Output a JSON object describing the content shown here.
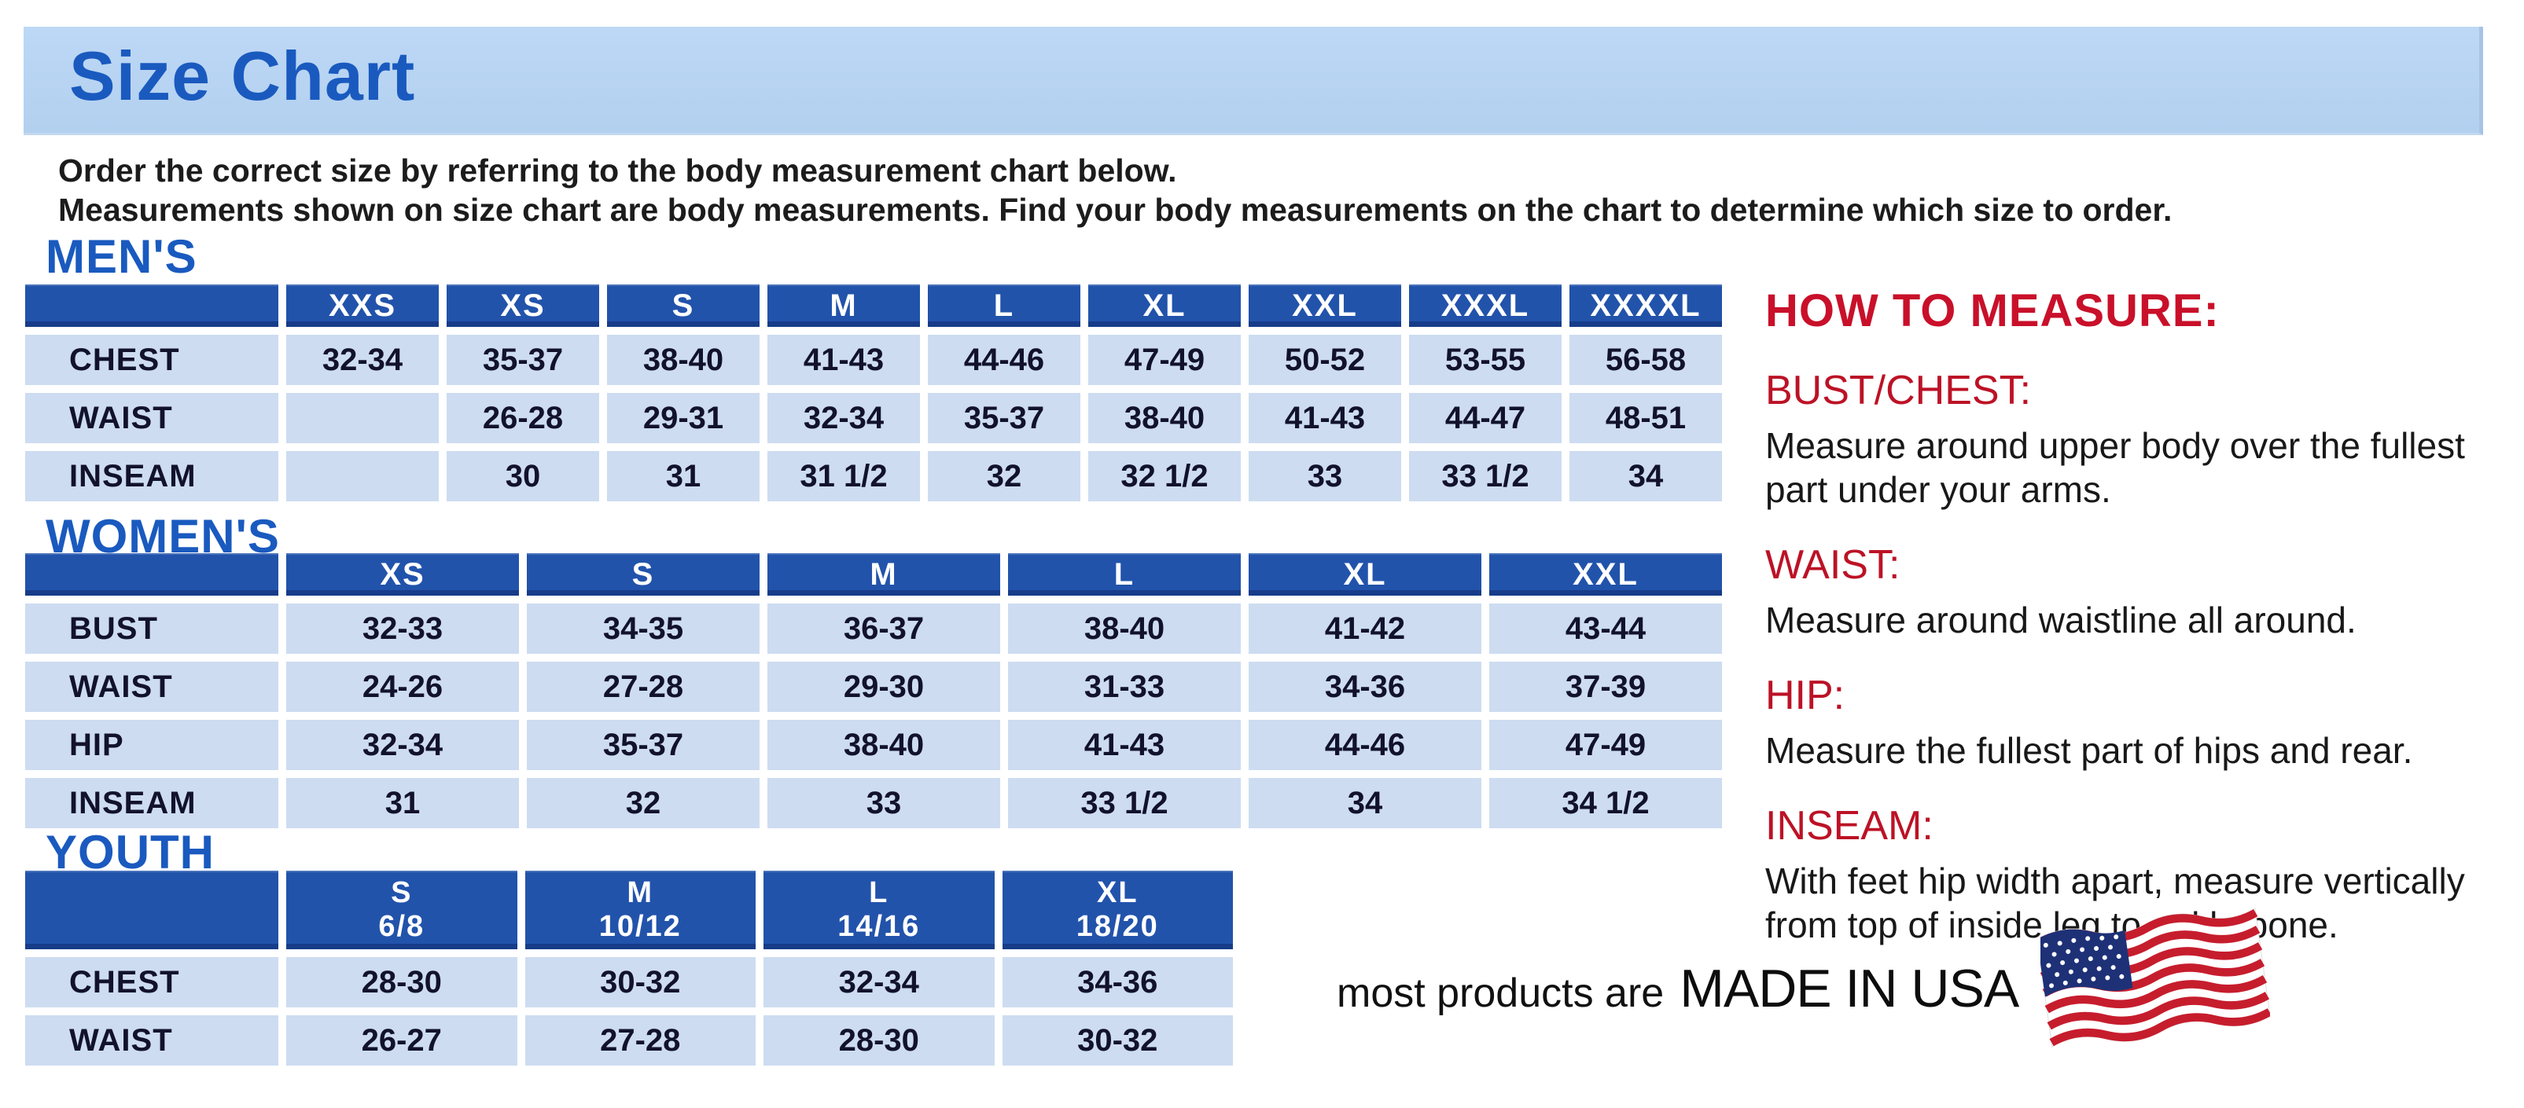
{
  "banner": {
    "title": "Size Chart"
  },
  "intro": {
    "line1": "Order the correct size by referring to the body measurement chart below.",
    "line2": "Measurements shown on size chart are body measurements.  Find your body measurements on the chart to determine which size to order."
  },
  "sections": {
    "mens": {
      "heading": "MEN'S",
      "columns": [
        "XXS",
        "XS",
        "S",
        "M",
        "L",
        "XL",
        "XXL",
        "XXXL",
        "XXXXL"
      ],
      "rows": [
        {
          "label": "CHEST",
          "values": [
            "32-34",
            "35-37",
            "38-40",
            "41-43",
            "44-46",
            "47-49",
            "50-52",
            "53-55",
            "56-58"
          ]
        },
        {
          "label": "WAIST",
          "values": [
            "",
            "26-28",
            "29-31",
            "32-34",
            "35-37",
            "38-40",
            "41-43",
            "44-47",
            "48-51"
          ]
        },
        {
          "label": "INSEAM",
          "values": [
            "",
            "30",
            "31",
            "31 1/2",
            "32",
            "32 1/2",
            "33",
            "33 1/2",
            "34"
          ]
        }
      ]
    },
    "womens": {
      "heading": "WOMEN'S",
      "columns": [
        "XS",
        "S",
        "M",
        "L",
        "XL",
        "XXL"
      ],
      "rows": [
        {
          "label": "BUST",
          "values": [
            "32-33",
            "34-35",
            "36-37",
            "38-40",
            "41-42",
            "43-44"
          ]
        },
        {
          "label": "WAIST",
          "values": [
            "24-26",
            "27-28",
            "29-30",
            "31-33",
            "34-36",
            "37-39"
          ]
        },
        {
          "label": "HIP",
          "values": [
            "32-34",
            "35-37",
            "38-40",
            "41-43",
            "44-46",
            "47-49"
          ]
        },
        {
          "label": "INSEAM",
          "values": [
            "31",
            "32",
            "33",
            "33 1/2",
            "34",
            "34 1/2"
          ]
        }
      ]
    },
    "youth": {
      "heading": "YOUTH",
      "columns": [
        "S\n6/8",
        "M\n10/12",
        "L\n14/16",
        "XL\n18/20"
      ],
      "rows": [
        {
          "label": "CHEST",
          "values": [
            "28-30",
            "30-32",
            "32-34",
            "34-36"
          ]
        },
        {
          "label": "WAIST",
          "values": [
            "26-27",
            "27-28",
            "28-30",
            "30-32"
          ]
        }
      ]
    }
  },
  "how_to_measure": {
    "title": "HOW TO MEASURE:",
    "items": [
      {
        "label": "BUST/CHEST:",
        "text": "Measure around upper body over the fullest part under your arms."
      },
      {
        "label": "WAIST:",
        "text": "Measure around waistline all around."
      },
      {
        "label": "HIP:",
        "text": "Measure the fullest part of hips and rear."
      },
      {
        "label": "INSEAM:",
        "text": "With feet hip width apart, measure vertically from top of inside leg to ankle bone."
      }
    ]
  },
  "footer": {
    "made_in_prefix": "most products are",
    "made_in": "MADE IN USA",
    "flag_icon": "usa-flag-icon"
  },
  "colors": {
    "banner_blue": "#b9d4f2",
    "title_blue": "#1a5abf",
    "table_header_blue": "#2253ab",
    "table_cell_blue": "#cddcf1",
    "accent_red": "#c9102a",
    "flag_red": "#c61d2d",
    "flag_navy": "#1e3177"
  }
}
